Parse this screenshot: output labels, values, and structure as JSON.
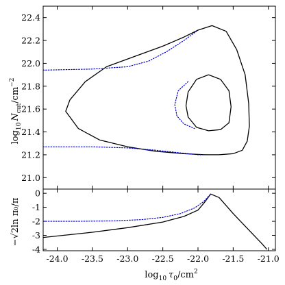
{
  "chart_data": [
    {
      "type": "line",
      "panel": "top",
      "ylabel_parts": {
        "prefix": "log",
        "sub": "10",
        "var": "N",
        "var_sub": "cut",
        "unit": "/cm",
        "unit_sup": "−2"
      },
      "xlim": [
        -24.2,
        -20.9
      ],
      "ylim": [
        20.9,
        22.5
      ],
      "yticks": [
        "21.0",
        "21.2",
        "21.4",
        "21.6",
        "21.8",
        "22.0",
        "22.2",
        "22.4"
      ],
      "grid": false,
      "series": [
        {
          "style": "solid",
          "color": "#000000",
          "x": [
            -21.8,
            -21.6,
            -21.45,
            -21.33,
            -21.28,
            -21.27,
            -21.3,
            -21.37,
            -21.5,
            -21.7,
            -21.9,
            -22.2,
            -22.6,
            -23.0,
            -23.4,
            -23.7,
            -23.88,
            -23.82,
            -23.6,
            -23.3,
            -22.9,
            -22.5,
            -22.2,
            -22.0,
            -21.8
          ],
          "y": [
            22.33,
            22.28,
            22.12,
            21.9,
            21.65,
            21.45,
            21.32,
            21.24,
            21.21,
            21.2,
            21.2,
            21.21,
            21.23,
            21.27,
            21.33,
            21.43,
            21.58,
            21.68,
            21.84,
            21.97,
            22.06,
            22.15,
            22.23,
            22.29,
            22.33
          ]
        },
        {
          "style": "solid",
          "color": "#000000",
          "x": [
            -21.85,
            -21.68,
            -21.56,
            -21.53,
            -21.56,
            -21.68,
            -21.85,
            -22.02,
            -22.14,
            -22.17,
            -22.14,
            -22.02,
            -21.85
          ],
          "y": [
            21.9,
            21.86,
            21.76,
            21.62,
            21.48,
            21.42,
            21.41,
            21.44,
            21.53,
            21.63,
            21.75,
            21.86,
            21.9
          ]
        },
        {
          "style": "dotted",
          "color": "#0000cc",
          "x": [
            -24.2,
            -23.5,
            -23.0,
            -22.7,
            -22.45,
            -22.2,
            -22.0
          ],
          "y": [
            21.94,
            21.95,
            21.97,
            22.02,
            22.1,
            22.2,
            22.29
          ]
        },
        {
          "style": "dotted",
          "color": "#0000cc",
          "x": [
            -24.2,
            -23.5,
            -23.0,
            -22.6,
            -22.3,
            -22.0,
            -21.9
          ],
          "y": [
            21.27,
            21.27,
            21.26,
            21.24,
            21.22,
            21.2,
            21.2
          ]
        },
        {
          "style": "dotted",
          "color": "#0000cc",
          "x": [
            -22.14,
            -22.28,
            -22.33,
            -22.3,
            -22.2,
            -22.05
          ],
          "y": [
            21.84,
            21.76,
            21.64,
            21.54,
            21.47,
            21.43
          ]
        }
      ]
    },
    {
      "type": "line",
      "panel": "bottom",
      "ylabel_text": "−√2ln π₀/π",
      "xlabel_parts": {
        "prefix": "log",
        "sub": "10",
        "var": "τ",
        "var_sub": "0",
        "unit": "/cm",
        "unit_sup": "2"
      },
      "xlim": [
        -24.2,
        -20.9
      ],
      "ylim": [
        -4.1,
        0.3
      ],
      "xticks": [
        "-24.0",
        "-23.5",
        "-23.0",
        "-22.5",
        "-22.0",
        "-21.5",
        "-21.0"
      ],
      "yticks": [
        "0",
        "-1",
        "-2",
        "-3",
        "-4"
      ],
      "grid": false,
      "series": [
        {
          "style": "solid",
          "color": "#000000",
          "x": [
            -24.2,
            -23.5,
            -23.0,
            -22.5,
            -22.2,
            -22.0,
            -21.9,
            -21.82,
            -21.7,
            -21.5,
            -21.3,
            -21.1,
            -21.02
          ],
          "y": [
            -3.15,
            -2.78,
            -2.45,
            -2.05,
            -1.65,
            -1.2,
            -0.6,
            -0.05,
            -0.3,
            -1.45,
            -2.5,
            -3.55,
            -4.0
          ]
        },
        {
          "style": "dotted",
          "color": "#0000cc",
          "x": [
            -24.2,
            -23.7,
            -23.2,
            -22.8,
            -22.5,
            -22.25,
            -22.05,
            -21.92,
            -21.82
          ],
          "y": [
            -2.0,
            -2.0,
            -1.97,
            -1.88,
            -1.72,
            -1.45,
            -1.05,
            -0.6,
            -0.05
          ]
        }
      ]
    }
  ]
}
